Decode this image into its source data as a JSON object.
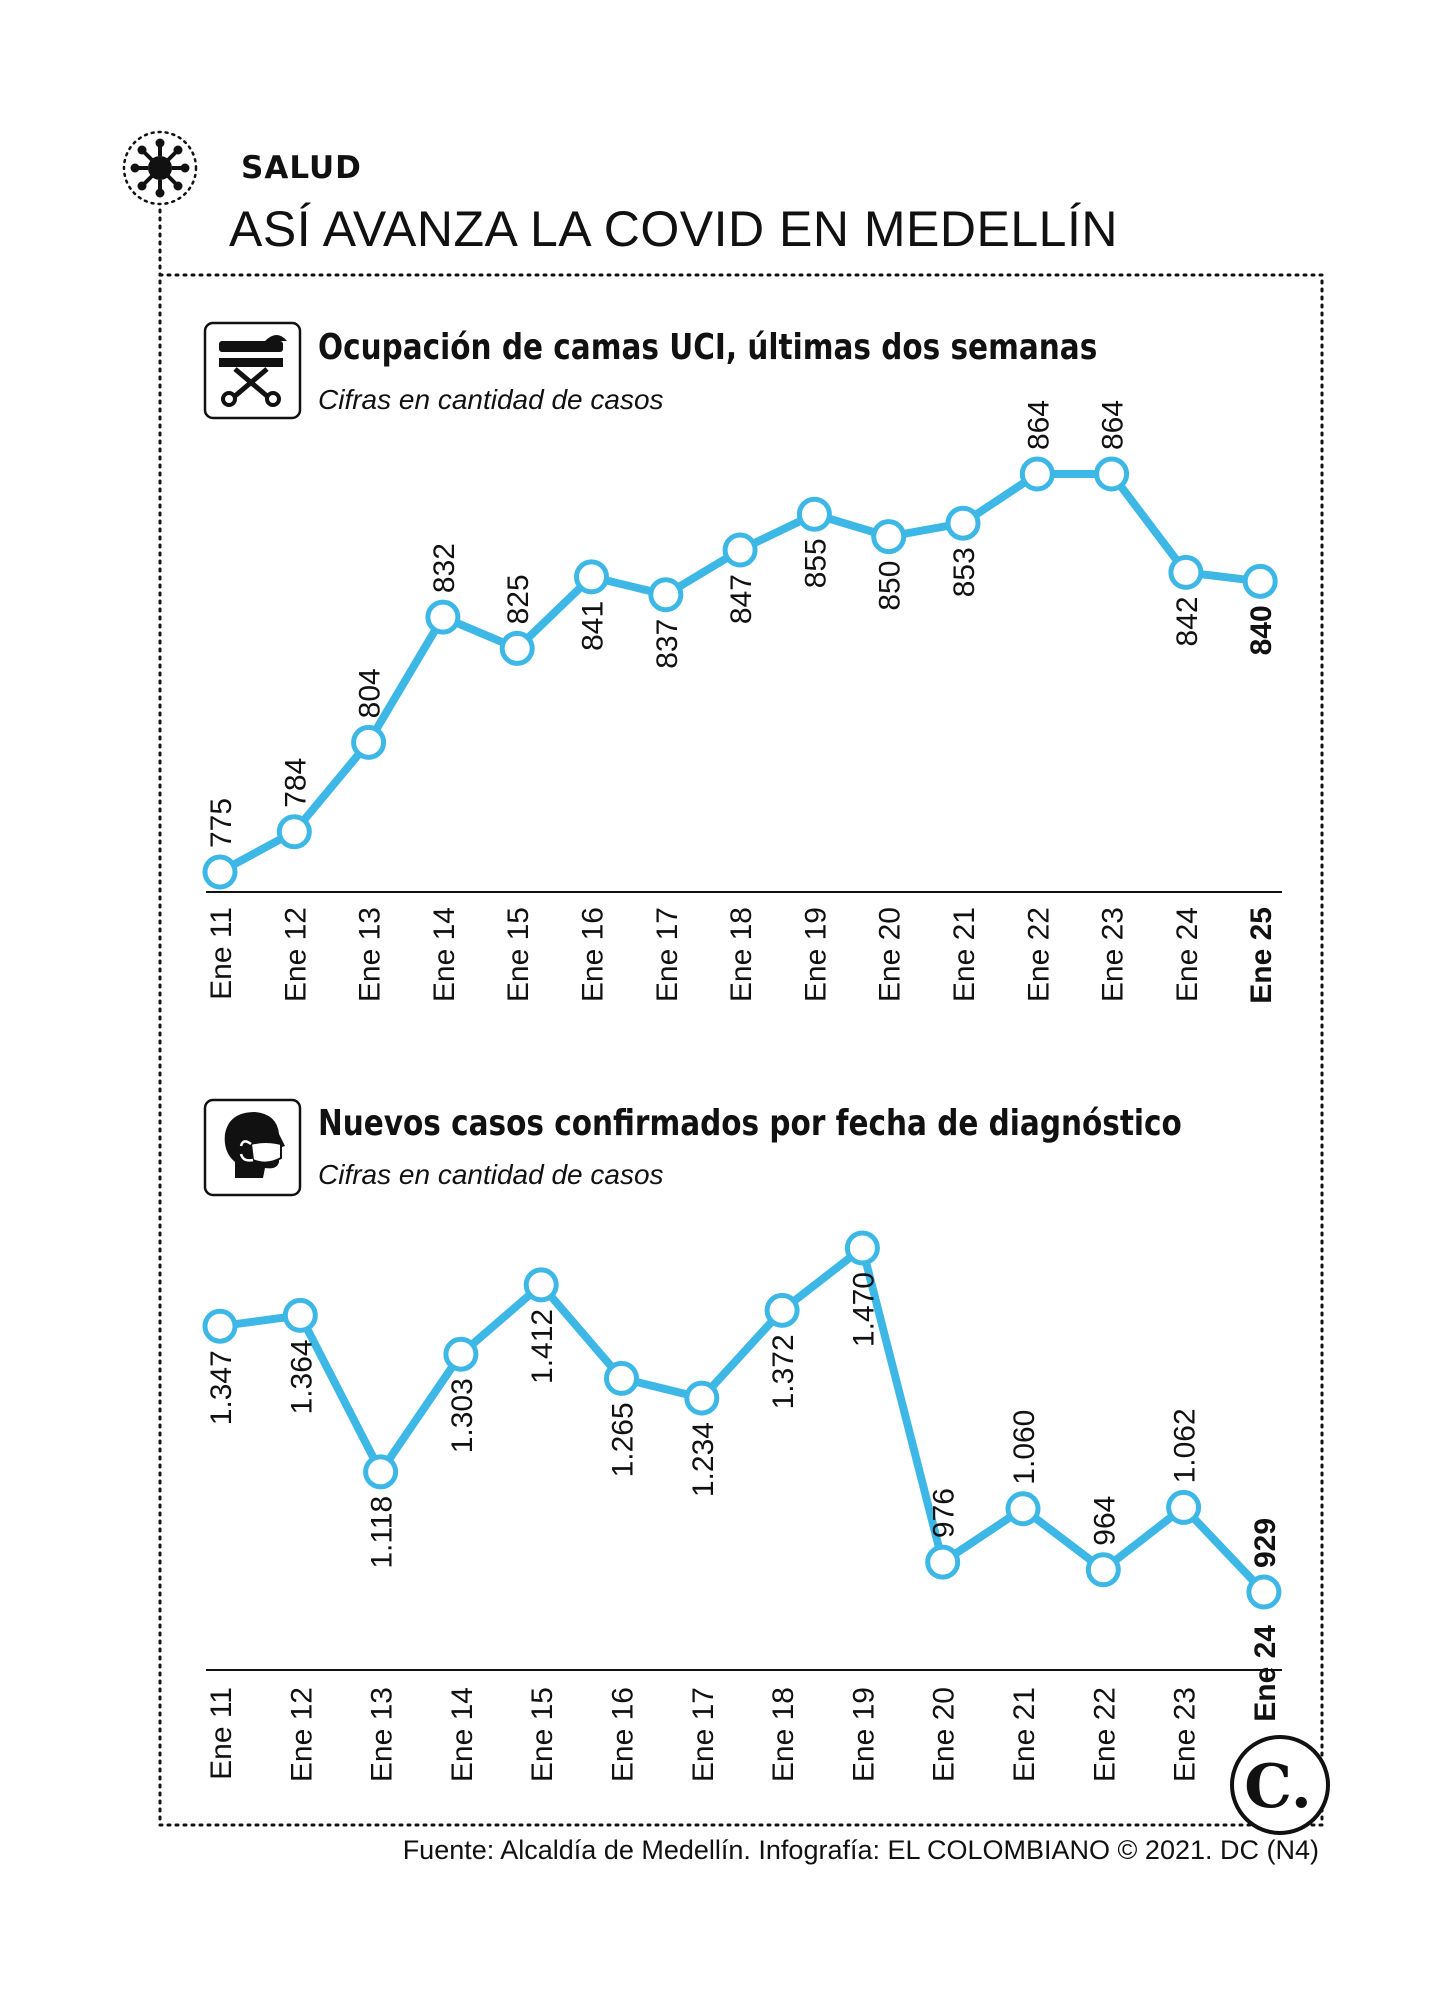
{
  "header": {
    "section": "SALUD",
    "title": "ASÍ AVANZA LA COVID EN MEDELLÍN"
  },
  "colors": {
    "line": "#3db8e6",
    "text": "#111111",
    "background": "#ffffff"
  },
  "icons": [
    "virus-icon",
    "stretcher-icon",
    "face-mask-icon",
    "el-colombiano-logo"
  ],
  "logo": {
    "text": "C."
  },
  "footer": "Fuente: Alcaldía de Medellín. Infografía: EL COLOMBIANO © 2021. DC (N4)",
  "chart_data": [
    {
      "type": "line",
      "title": "Ocupación de camas UCI, últimas dos semanas",
      "subtitle": "Cifras en cantidad de casos",
      "categories": [
        "Ene 11",
        "Ene 12",
        "Ene 13",
        "Ene 14",
        "Ene 15",
        "Ene 16",
        "Ene 17",
        "Ene 18",
        "Ene 19",
        "Ene 20",
        "Ene 21",
        "Ene 22",
        "Ene 23",
        "Ene 24",
        "Ene 25"
      ],
      "values": [
        775,
        784,
        804,
        832,
        825,
        841,
        837,
        847,
        855,
        850,
        853,
        864,
        864,
        842,
        840
      ],
      "value_labels": [
        "775",
        "784",
        "804",
        "832",
        "825",
        "841",
        "837",
        "847",
        "855",
        "850",
        "853",
        "864",
        "864",
        "842",
        "840"
      ],
      "label_position": [
        "above",
        "above",
        "above",
        "above",
        "above",
        "below",
        "below",
        "below",
        "below",
        "below",
        "below",
        "above",
        "above",
        "below",
        "below"
      ],
      "highlight_last": true,
      "ylim": [
        775,
        864
      ],
      "grid": false
    },
    {
      "type": "line",
      "title": "Nuevos casos confirmados por fecha de diagnóstico",
      "subtitle": "Cifras en cantidad de casos",
      "categories": [
        "Ene 11",
        "Ene 12",
        "Ene 13",
        "Ene 14",
        "Ene 15",
        "Ene 16",
        "Ene 17",
        "Ene 18",
        "Ene 19",
        "Ene 20",
        "Ene 21",
        "Ene 22",
        "Ene 23",
        "Ene 24"
      ],
      "values": [
        1347,
        1364,
        1118,
        1303,
        1412,
        1265,
        1234,
        1372,
        1470,
        976,
        1060,
        964,
        1062,
        929
      ],
      "value_labels": [
        "1.347",
        "1.364",
        "1.118",
        "1.303",
        "1.412",
        "1.265",
        "1.234",
        "1.372",
        "1.470",
        "976",
        "1.060",
        "964",
        "1.062",
        "929"
      ],
      "label_position": [
        "below",
        "below",
        "below",
        "below",
        "below",
        "below",
        "below",
        "below",
        "below",
        "above",
        "above",
        "above",
        "above",
        "above"
      ],
      "highlight_last": true,
      "ylim": [
        929,
        1470
      ],
      "grid": false
    }
  ]
}
